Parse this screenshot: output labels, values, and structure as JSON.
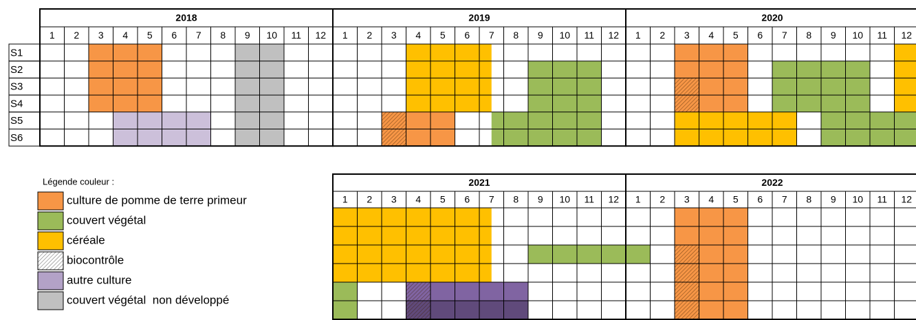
{
  "legend": {
    "title": "Légende couleur :",
    "items": [
      {
        "label": "culture de pomme de terre primeur",
        "color": "#f79646"
      },
      {
        "label": "couvert végétal",
        "color": "#9bbb59"
      },
      {
        "label": "céréale",
        "color": "#ffc000"
      },
      {
        "label": "biocontrôle",
        "color": "#ffffff",
        "hatch": true
      },
      {
        "label": "autre culture",
        "color": "#b3a2c7"
      },
      {
        "label": "couvert végétal  non développé",
        "color": "#c0c0c0"
      }
    ]
  },
  "panels": [
    {
      "rows": [
        "S1",
        "S2",
        "S3",
        "S4",
        "S5",
        "S6"
      ],
      "years": [
        {
          "year": 2018,
          "months": [
            1,
            2,
            3,
            4,
            5,
            6,
            7,
            8,
            9,
            10,
            11,
            12
          ],
          "blocks": [
            {
              "rows": [
                0,
                3
              ],
              "start": 2,
              "end": 5,
              "color": "#f79646"
            },
            {
              "rows": [
                0,
                5
              ],
              "start": 8,
              "end": 10,
              "color": "#c0c0c0"
            },
            {
              "rows": [
                4,
                5
              ],
              "start": 3,
              "end": 7,
              "color": "#ccc0da"
            }
          ]
        },
        {
          "year": 2019,
          "months": [
            1,
            2,
            3,
            4,
            5,
            6,
            7,
            8,
            9,
            10,
            11,
            12
          ],
          "blocks": [
            {
              "rows": [
                0,
                3
              ],
              "start": 3,
              "end": 6.5,
              "color": "#ffc000"
            },
            {
              "rows": [
                1,
                3
              ],
              "start": 8,
              "end": 11,
              "color": "#9bbb59"
            },
            {
              "rows": [
                4,
                5
              ],
              "start": 2,
              "end": 3,
              "color": "#f79646",
              "hatch": true
            },
            {
              "rows": [
                4,
                5
              ],
              "start": 3,
              "end": 5,
              "color": "#f79646"
            },
            {
              "rows": [
                4,
                5
              ],
              "start": 6.5,
              "end": 11,
              "color": "#9bbb59"
            }
          ]
        },
        {
          "year": 2020,
          "months": [
            1,
            2,
            3,
            4,
            5,
            6,
            7,
            8,
            9,
            10,
            11,
            12
          ],
          "blocks": [
            {
              "rows": [
                0,
                1
              ],
              "start": 2,
              "end": 5,
              "color": "#f79646"
            },
            {
              "rows": [
                2,
                3
              ],
              "start": 2,
              "end": 3,
              "color": "#f79646",
              "hatch": true
            },
            {
              "rows": [
                2,
                3
              ],
              "start": 3,
              "end": 5,
              "color": "#f79646"
            },
            {
              "rows": [
                1,
                3
              ],
              "start": 6,
              "end": 10,
              "color": "#9bbb59"
            },
            {
              "rows": [
                0,
                3
              ],
              "start": 11,
              "end": 12,
              "color": "#ffc000"
            },
            {
              "rows": [
                4,
                5
              ],
              "start": 2,
              "end": 7,
              "color": "#ffc000"
            },
            {
              "rows": [
                4,
                5
              ],
              "start": 8,
              "end": 12,
              "color": "#9bbb59"
            }
          ]
        }
      ]
    },
    {
      "years": [
        {
          "year": 2021,
          "months": [
            1,
            2,
            3,
            4,
            5,
            6,
            7,
            8,
            9,
            10,
            11,
            12
          ],
          "blocks": [
            {
              "rows": [
                0,
                3
              ],
              "start": 0,
              "end": 6.5,
              "color": "#ffc000"
            },
            {
              "rows": [
                2,
                2
              ],
              "start": 8,
              "end": 12,
              "color": "#9bbb59"
            },
            {
              "rows": [
                4,
                5
              ],
              "start": 0,
              "end": 1,
              "color": "#9bbb59"
            },
            {
              "rows": [
                4,
                4
              ],
              "start": 3,
              "end": 4,
              "color": "#8064a2",
              "hatch": true
            },
            {
              "rows": [
                4,
                4
              ],
              "start": 4,
              "end": 8,
              "color": "#8064a2"
            },
            {
              "rows": [
                5,
                5
              ],
              "start": 3,
              "end": 4,
              "color": "#604a7b",
              "hatch": true
            },
            {
              "rows": [
                5,
                5
              ],
              "start": 4,
              "end": 8,
              "color": "#604a7b"
            }
          ]
        },
        {
          "year": 2022,
          "months": [
            1,
            2,
            3,
            4,
            5,
            6,
            7,
            8,
            9,
            10,
            11,
            12
          ],
          "blocks": [
            {
              "rows": [
                0,
                1
              ],
              "start": 2,
              "end": 5,
              "color": "#f79646"
            },
            {
              "rows": [
                2,
                2
              ],
              "start": 0,
              "end": 1,
              "color": "#9bbb59"
            },
            {
              "rows": [
                2,
                5
              ],
              "start": 2,
              "end": 3,
              "color": "#f79646",
              "hatch": true
            },
            {
              "rows": [
                2,
                5
              ],
              "start": 3,
              "end": 5,
              "color": "#f79646"
            }
          ]
        }
      ]
    }
  ]
}
